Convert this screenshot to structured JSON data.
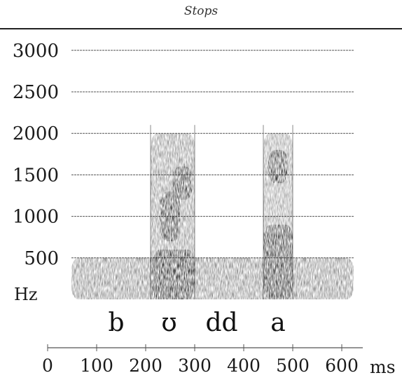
{
  "page": {
    "running_head": "Stops"
  },
  "chart_data": {
    "type": "spectrogram",
    "y_axis": {
      "unit_label": "Hz",
      "min": 0,
      "max": 3000,
      "ticks": [
        500,
        1000,
        1500,
        2000,
        2500,
        3000
      ]
    },
    "x_axis": {
      "unit_label": "ms",
      "min": 0,
      "max": 600,
      "ticks": [
        0,
        100,
        200,
        300,
        400,
        500,
        600
      ]
    },
    "segments": [
      {
        "label": "b",
        "center_ms": 140
      },
      {
        "label": "ʊ",
        "center_ms": 248
      },
      {
        "label": "dd",
        "center_ms": 355
      },
      {
        "label": "a",
        "center_ms": 470
      }
    ],
    "vowel_intervals_ms": [
      [
        210,
        300
      ],
      [
        440,
        500
      ]
    ],
    "energy_regions": [
      {
        "ms": [
          0,
          650
        ],
        "hz": [
          0,
          500
        ],
        "intensity": 0.55
      },
      {
        "ms": [
          210,
          300
        ],
        "hz": [
          0,
          2000
        ],
        "intensity": 0.5
      },
      {
        "ms": [
          230,
          270
        ],
        "hz": [
          700,
          1300
        ],
        "intensity": 0.85
      },
      {
        "ms": [
          255,
          295
        ],
        "hz": [
          1200,
          1600
        ],
        "intensity": 0.85
      },
      {
        "ms": [
          215,
          300
        ],
        "hz": [
          0,
          600
        ],
        "intensity": 0.95
      },
      {
        "ms": [
          440,
          500
        ],
        "hz": [
          0,
          2000
        ],
        "intensity": 0.45
      },
      {
        "ms": [
          450,
          490
        ],
        "hz": [
          1400,
          1800
        ],
        "intensity": 0.85
      },
      {
        "ms": [
          440,
          500
        ],
        "hz": [
          0,
          900
        ],
        "intensity": 0.9
      }
    ]
  }
}
